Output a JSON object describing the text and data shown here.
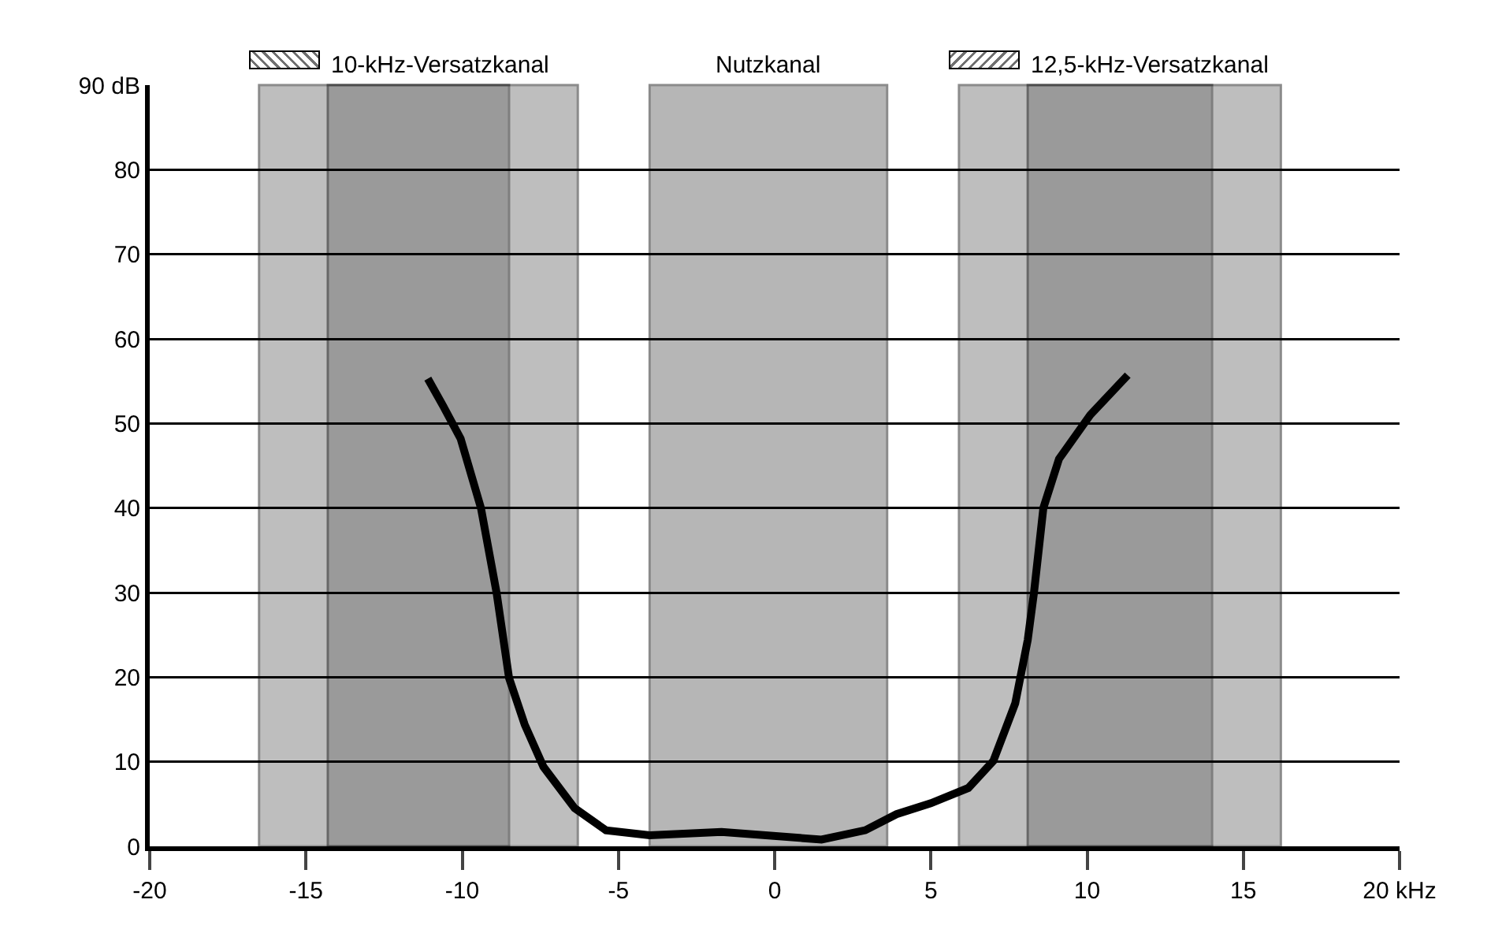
{
  "chart_data": {
    "type": "line",
    "x": [
      -11.1,
      -10.6,
      -10.05,
      -9.4,
      -8.9,
      -8.5,
      -8.0,
      -7.4,
      -6.4,
      -5.4,
      -4.0,
      -1.7,
      1.5,
      2.9,
      3.9,
      5.0,
      6.2,
      7.0,
      7.7,
      8.1,
      8.3,
      8.6,
      9.1,
      10.1,
      11.3
    ],
    "series": [
      {
        "color": "#000000",
        "values": [
          55.3,
          52,
          48.2,
          40,
          30,
          19.9,
          14.4,
          9.4,
          4.5,
          1.9,
          1.3,
          1.7,
          0.8,
          1.9,
          3.8,
          5.1,
          6.9,
          10.1,
          16.9,
          24.4,
          30,
          40,
          45.8,
          51,
          55.7
        ]
      }
    ],
    "xlim": [
      -20,
      20
    ],
    "xticks": [
      -20,
      -15,
      -10,
      -5,
      0,
      5,
      10,
      15,
      {
        "value": 20,
        "label": "20 kHz"
      }
    ],
    "ylim": [
      0,
      90
    ],
    "yticks": [
      0,
      10,
      20,
      30,
      40,
      50,
      60,
      70,
      80,
      {
        "value": 90,
        "label": "90 dB"
      }
    ],
    "grid": "y",
    "marker": "none",
    "line_style": "solid",
    "legend": "top",
    "bands": [
      {
        "axis": "x",
        "from": -16.5,
        "to": -8.5,
        "color": "#707070",
        "label": null
      },
      {
        "axis": "x",
        "from": -14.3,
        "to": -6.3,
        "color": "#707070",
        "label": "10-kHz-Versatzkanal"
      },
      {
        "axis": "x",
        "from": -4.0,
        "to": 3.6,
        "color": "#606060",
        "label": "Nutzkanal"
      },
      {
        "axis": "x",
        "from": 5.9,
        "to": 14.0,
        "color": "#707070",
        "label": null
      },
      {
        "axis": "x",
        "from": 8.1,
        "to": 16.2,
        "color": "#707070",
        "label": "12,5-kHz-Versatzkanal"
      }
    ]
  }
}
